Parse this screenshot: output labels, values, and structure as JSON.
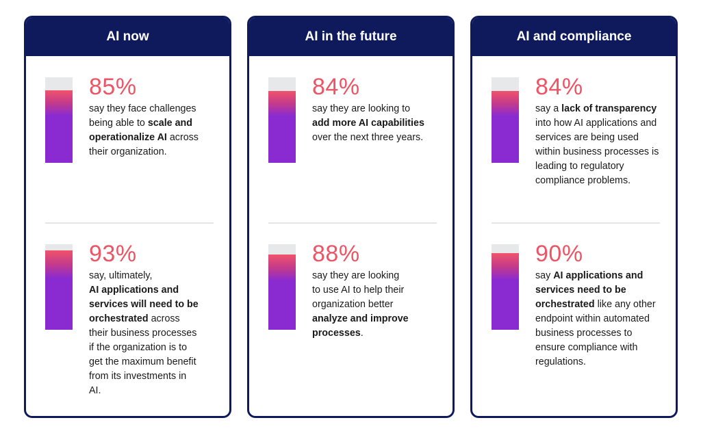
{
  "cards": [
    {
      "title": "AI now",
      "stats": [
        {
          "percent": "85%",
          "value": 85,
          "parts": [
            {
              "text": "say they face challenges being able to ",
              "bold": false
            },
            {
              "text": "scale and operationalize AI",
              "bold": true
            },
            {
              "text": " across their organization.",
              "bold": false
            }
          ]
        },
        {
          "percent": "93%",
          "value": 93,
          "parts": [
            {
              "text": "say, ultimately,\n",
              "bold": false
            },
            {
              "text": "AI applications and services will need to be orchestrated",
              "bold": true
            },
            {
              "text": " across their business processes if the organization is to get the maximum benefit from its investments in AI.",
              "bold": false
            }
          ]
        }
      ]
    },
    {
      "title": "AI in the future",
      "stats": [
        {
          "percent": "84%",
          "value": 84,
          "parts": [
            {
              "text": "say they are looking to\n",
              "bold": false
            },
            {
              "text": "add more AI capabilities",
              "bold": true
            },
            {
              "text": " over the next three years.",
              "bold": false
            }
          ]
        },
        {
          "percent": "88%",
          "value": 88,
          "parts": [
            {
              "text": "say they are looking\nto use AI to help their organization better\n",
              "bold": false
            },
            {
              "text": "analyze and improve processes",
              "bold": true
            },
            {
              "text": ".",
              "bold": false
            }
          ]
        }
      ]
    },
    {
      "title": "AI and compliance",
      "stats": [
        {
          "percent": "84%",
          "value": 84,
          "parts": [
            {
              "text": "say a ",
              "bold": false
            },
            {
              "text": "lack of transparency",
              "bold": true
            },
            {
              "text": " into how AI applications and services are being used within business processes is leading to regulatory compliance problems.",
              "bold": false
            }
          ]
        },
        {
          "percent": "90%",
          "value": 90,
          "parts": [
            {
              "text": "say ",
              "bold": false
            },
            {
              "text": "AI applications and services need to be orchestrated",
              "bold": true
            },
            {
              "text": " like any other endpoint within automated business processes to ensure compliance with regulations.",
              "bold": false
            }
          ]
        }
      ]
    }
  ],
  "colors": {
    "header_bg": "#0f1a5c",
    "percent": "#ec5565",
    "bar_track": "#e6e8ea",
    "bar_fill_top": "#f0536a",
    "bar_fill_bottom": "#8a2bd1"
  }
}
